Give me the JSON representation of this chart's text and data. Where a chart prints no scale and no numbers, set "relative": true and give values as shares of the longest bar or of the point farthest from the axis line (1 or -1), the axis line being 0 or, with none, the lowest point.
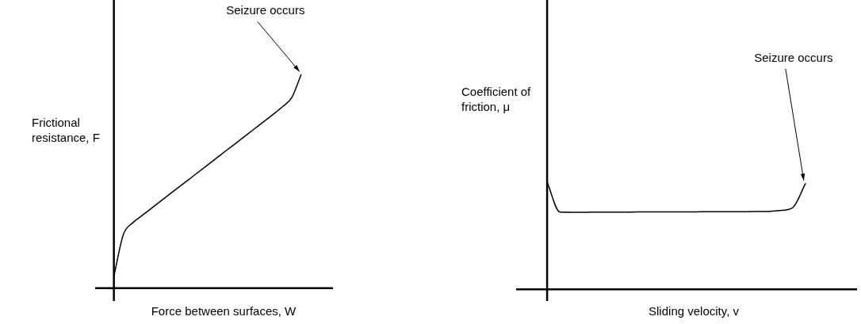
{
  "chart_data": [
    {
      "type": "line",
      "relative": true,
      "xlabel": "Force between surfaces, W",
      "ylabel": "Frictional resistance, F",
      "color": "#000000",
      "marker": "none",
      "line_style": "solid",
      "legend": false,
      "categories": [
        null,
        null,
        null,
        null,
        null,
        null,
        null,
        null,
        null,
        null,
        null,
        null,
        null,
        null,
        null,
        null,
        null,
        null,
        null,
        null,
        null
      ],
      "values": [
        0.055,
        0.25,
        0.306,
        0.34,
        0.374,
        0.408,
        0.442,
        0.476,
        0.509,
        0.543,
        0.577,
        0.611,
        0.645,
        0.678,
        0.712,
        0.746,
        0.78,
        0.814,
        0.85,
        0.893,
        1
      ],
      "annotations": [
        "Seizure occurs"
      ]
    },
    {
      "type": "line",
      "relative": true,
      "xlabel": "Sliding velocity, v",
      "ylabel": "Coefficient of friction, μ",
      "color": "#000000",
      "marker": "none",
      "line_style": "solid",
      "legend": false,
      "categories": [
        null,
        null,
        null,
        null,
        null,
        null,
        null,
        null,
        null,
        null,
        null,
        null,
        null,
        null,
        null,
        null,
        null,
        null,
        null,
        null,
        null
      ],
      "values": [
        1,
        0.72,
        0.719,
        0.719,
        0.72,
        0.72,
        0.72,
        0.721,
        0.721,
        0.722,
        0.722,
        0.722,
        0.723,
        0.723,
        0.724,
        0.724,
        0.725,
        0.725,
        0.735,
        0.76,
        0.985
      ],
      "annotations": [
        "Seizure occurs"
      ]
    }
  ]
}
